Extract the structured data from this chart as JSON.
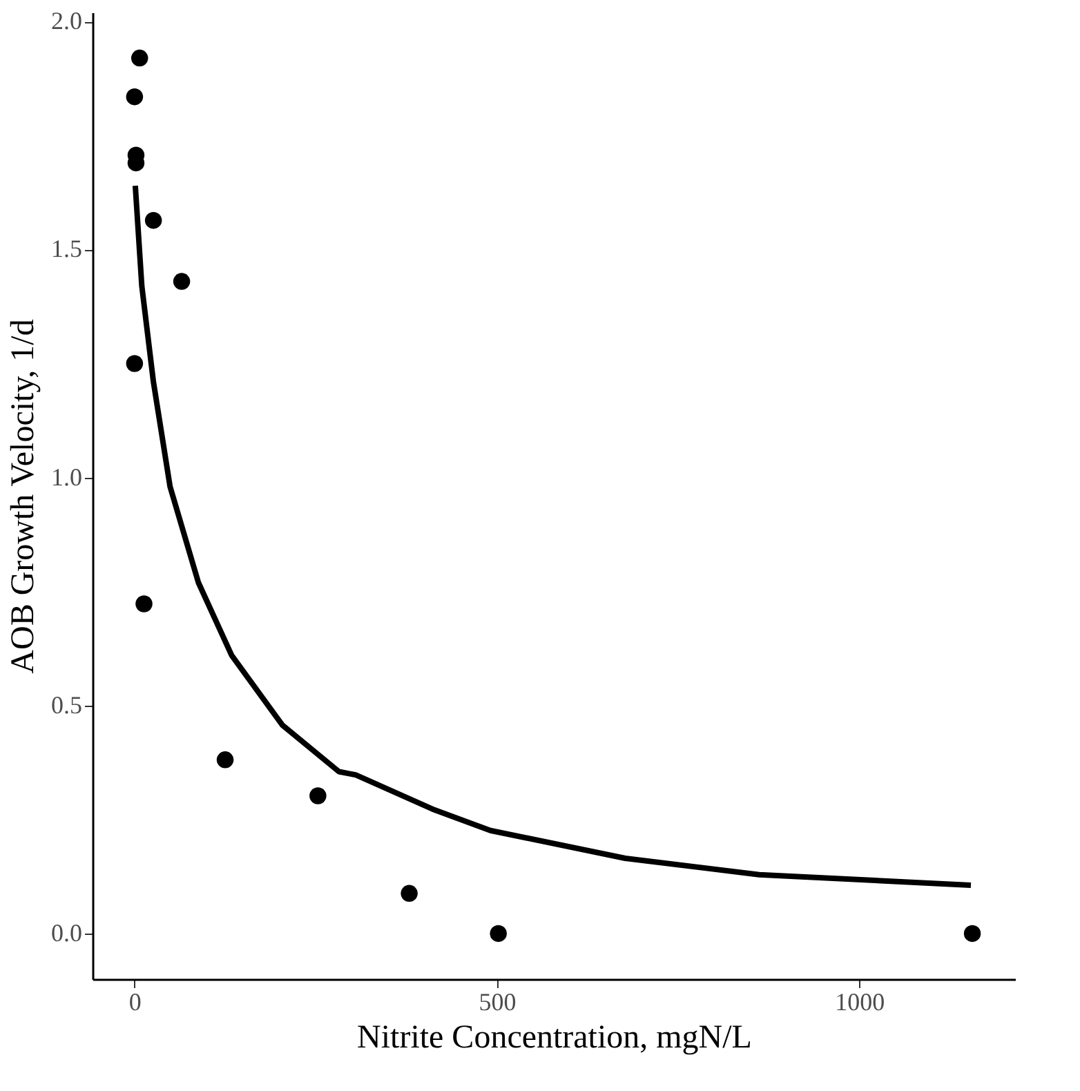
{
  "chart_data": {
    "type": "scatter",
    "xlabel": "Nitrite Concentration, mgN/L",
    "ylabel": "AOB Growth Velocity, 1/d",
    "xlim": [
      -58,
      1215
    ],
    "ylim": [
      -0.1,
      2.02
    ],
    "xticks": [
      0,
      500,
      1000
    ],
    "yticks": [
      {
        "value": 0,
        "label": "0.0"
      },
      0.5,
      {
        "value": 1,
        "label": "1.0"
      },
      1.5,
      {
        "value": 2,
        "label": "2.0"
      }
    ],
    "grid": false,
    "series": [
      {
        "color": "#000000",
        "marker": "circle",
        "x": [
          7,
          0,
          2,
          2,
          26,
          65,
          0,
          13,
          125,
          253,
          379,
          502,
          1156
        ],
        "values": [
          1.92,
          1.835,
          1.707,
          1.69,
          1.564,
          1.43,
          1.25,
          0.723,
          0.381,
          0.302,
          0.088,
          0.0,
          0.0
        ]
      },
      {
        "type": "line",
        "color": "#000000",
        "line_style": "solid",
        "x": [
          1,
          10,
          26,
          49,
          88,
          134,
          204,
          282,
          305,
          411,
          491,
          677,
          862,
          1154
        ],
        "values": [
          1.64,
          1.42,
          1.21,
          0.98,
          0.77,
          0.61,
          0.457,
          0.355,
          0.348,
          0.273,
          0.226,
          0.165,
          0.129,
          0.106
        ]
      }
    ]
  }
}
